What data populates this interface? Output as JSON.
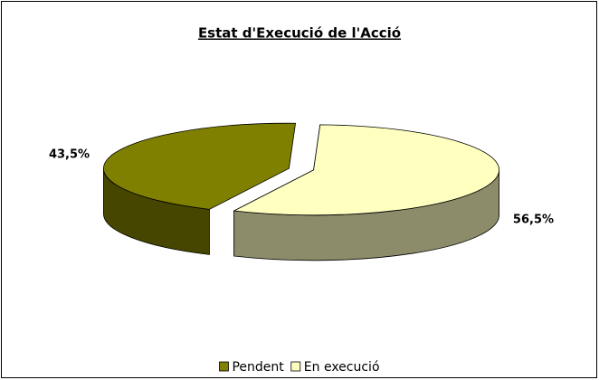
{
  "chart_data": {
    "type": "pie3d",
    "title": "Estat d'Execució de l'Acció",
    "categories": [
      "Pendent",
      "En execució"
    ],
    "values": [
      43.5,
      56.5
    ],
    "value_labels": [
      "43,5%",
      "56,5%"
    ],
    "colors": [
      "#808000",
      "#ffffc0"
    ],
    "legend": "bottom"
  }
}
